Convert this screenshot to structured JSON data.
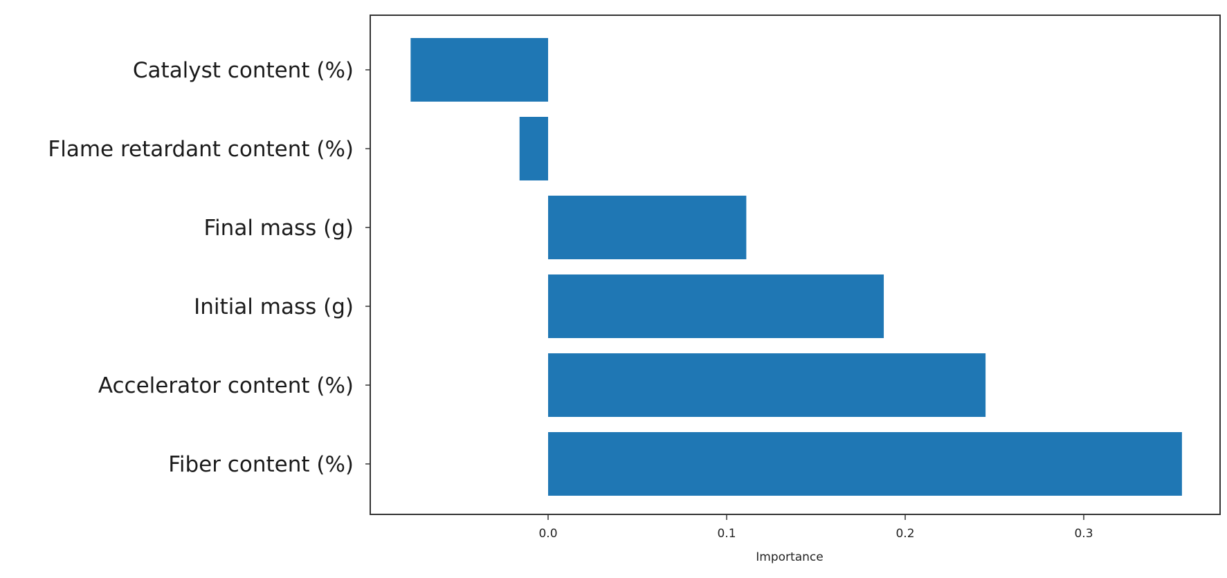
{
  "chart_data": {
    "type": "bar",
    "orientation": "horizontal",
    "categories": [
      "Catalyst content (%)",
      "Flame retardant content (%)",
      "Final mass (g)",
      "Initial mass (g)",
      "Accelerator content (%)",
      "Fiber content (%)"
    ],
    "values": [
      -0.077,
      -0.016,
      0.111,
      0.188,
      0.245,
      0.355
    ],
    "title": "",
    "xlabel": "Importance",
    "ylabel": "",
    "xlim": [
      -0.1,
      0.37
    ],
    "xticks": [
      0.0,
      0.1,
      0.2,
      0.3
    ],
    "xtick_labels": [
      "0.0",
      "0.1",
      "0.2",
      "0.3"
    ],
    "grid": false,
    "colors": {
      "bar": "#1f77b4",
      "frame": "#333333"
    }
  }
}
